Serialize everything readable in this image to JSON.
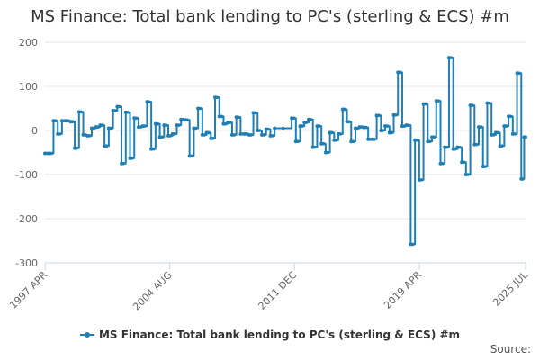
{
  "chart_data": {
    "type": "line",
    "title": "MS Finance: Total bank lending to PC's (sterling & ECS) #m",
    "xlabel": "",
    "ylabel": "",
    "ylim": [
      -300,
      200
    ],
    "yticks": [
      "200",
      "100",
      "0",
      "-100",
      "-200",
      "-300"
    ],
    "xlim": [
      "1997-04",
      "2025-07"
    ],
    "xticks": [
      "1997 APR",
      "2004 AUG",
      "2011 DEC",
      "2019 APR",
      "2025 JUL"
    ],
    "grid": true,
    "legend_position": "bottom",
    "series": [
      {
        "name": "MS Finance: Total bank lending to PC's (sterling & ECS) #m",
        "color": "#1f7fb4",
        "points": [
          [
            "1997-04",
            -52
          ],
          [
            "1997-07",
            -52
          ],
          [
            "1997-10",
            22
          ],
          [
            "1998-01",
            -8
          ],
          [
            "1998-04",
            22
          ],
          [
            "1998-07",
            22
          ],
          [
            "1998-10",
            20
          ],
          [
            "1999-01",
            -40
          ],
          [
            "1999-04",
            42
          ],
          [
            "1999-07",
            -10
          ],
          [
            "1999-10",
            -12
          ],
          [
            "2000-01",
            5
          ],
          [
            "2000-04",
            8
          ],
          [
            "2000-07",
            12
          ],
          [
            "2000-10",
            -35
          ],
          [
            "2001-01",
            5
          ],
          [
            "2001-04",
            45
          ],
          [
            "2001-07",
            54
          ],
          [
            "2001-10",
            -75
          ],
          [
            "2002-01",
            41
          ],
          [
            "2002-04",
            -63
          ],
          [
            "2002-07",
            28
          ],
          [
            "2002-10",
            8
          ],
          [
            "2003-01",
            10
          ],
          [
            "2003-04",
            65
          ],
          [
            "2003-07",
            -42
          ],
          [
            "2003-10",
            15
          ],
          [
            "2004-01",
            -15
          ],
          [
            "2004-04",
            12
          ],
          [
            "2004-07",
            -12
          ],
          [
            "2004-10",
            -8
          ],
          [
            "2005-01",
            12
          ],
          [
            "2005-04",
            25
          ],
          [
            "2005-07",
            24
          ],
          [
            "2005-10",
            -58
          ],
          [
            "2006-01",
            5
          ],
          [
            "2006-04",
            50
          ],
          [
            "2006-07",
            -10
          ],
          [
            "2006-10",
            -5
          ],
          [
            "2007-01",
            -18
          ],
          [
            "2007-04",
            75
          ],
          [
            "2007-07",
            32
          ],
          [
            "2007-10",
            15
          ],
          [
            "2008-01",
            18
          ],
          [
            "2008-04",
            -10
          ],
          [
            "2008-07",
            30
          ],
          [
            "2008-10",
            -8
          ],
          [
            "2009-01",
            -8
          ],
          [
            "2009-04",
            -10
          ],
          [
            "2009-07",
            40
          ],
          [
            "2009-10",
            0
          ],
          [
            "2010-01",
            -10
          ],
          [
            "2010-04",
            3
          ],
          [
            "2010-07",
            -12
          ],
          [
            "2010-10",
            5
          ],
          [
            "2011-10",
            28
          ],
          [
            "2012-01",
            -25
          ],
          [
            "2012-04",
            10
          ],
          [
            "2012-07",
            18
          ],
          [
            "2012-10",
            25
          ],
          [
            "2013-01",
            -38
          ],
          [
            "2013-04",
            10
          ],
          [
            "2013-07",
            -30
          ],
          [
            "2013-10",
            -50
          ],
          [
            "2014-01",
            -5
          ],
          [
            "2014-04",
            -22
          ],
          [
            "2014-07",
            -8
          ],
          [
            "2014-10",
            48
          ],
          [
            "2015-01",
            20
          ],
          [
            "2015-04",
            -25
          ],
          [
            "2015-07",
            5
          ],
          [
            "2015-10",
            8
          ],
          [
            "2016-01",
            7
          ],
          [
            "2016-04",
            -20
          ],
          [
            "2016-07",
            -20
          ],
          [
            "2016-10",
            34
          ],
          [
            "2017-01",
            0
          ],
          [
            "2017-04",
            10
          ],
          [
            "2017-07",
            -5
          ],
          [
            "2017-10",
            35
          ],
          [
            "2018-01",
            132
          ],
          [
            "2018-04",
            10
          ],
          [
            "2018-07",
            12
          ],
          [
            "2018-10",
            -258
          ],
          [
            "2019-01",
            -22
          ],
          [
            "2019-04",
            -112
          ],
          [
            "2019-07",
            60
          ],
          [
            "2019-10",
            -25
          ],
          [
            "2020-01",
            -15
          ],
          [
            "2020-04",
            67
          ],
          [
            "2020-07",
            -75
          ],
          [
            "2020-10",
            -38
          ],
          [
            "2021-01",
            165
          ],
          [
            "2021-04",
            -42
          ],
          [
            "2021-07",
            -38
          ],
          [
            "2021-10",
            -72
          ],
          [
            "2022-01",
            -100
          ],
          [
            "2022-04",
            57
          ],
          [
            "2022-07",
            -32
          ],
          [
            "2022-10",
            8
          ],
          [
            "2023-01",
            -82
          ],
          [
            "2023-04",
            62
          ],
          [
            "2023-07",
            -10
          ],
          [
            "2023-10",
            -5
          ],
          [
            "2024-01",
            -35
          ],
          [
            "2024-04",
            10
          ],
          [
            "2024-07",
            32
          ],
          [
            "2024-10",
            -8
          ],
          [
            "2025-01",
            130
          ],
          [
            "2025-04",
            -110
          ],
          [
            "2025-06",
            -15
          ],
          [
            "2025-07",
            -15
          ]
        ]
      }
    ]
  },
  "legend": {
    "label": "MS Finance: Total bank lending to PC's (sterling & ECS) #m"
  },
  "credit": {
    "label": "Source:"
  }
}
